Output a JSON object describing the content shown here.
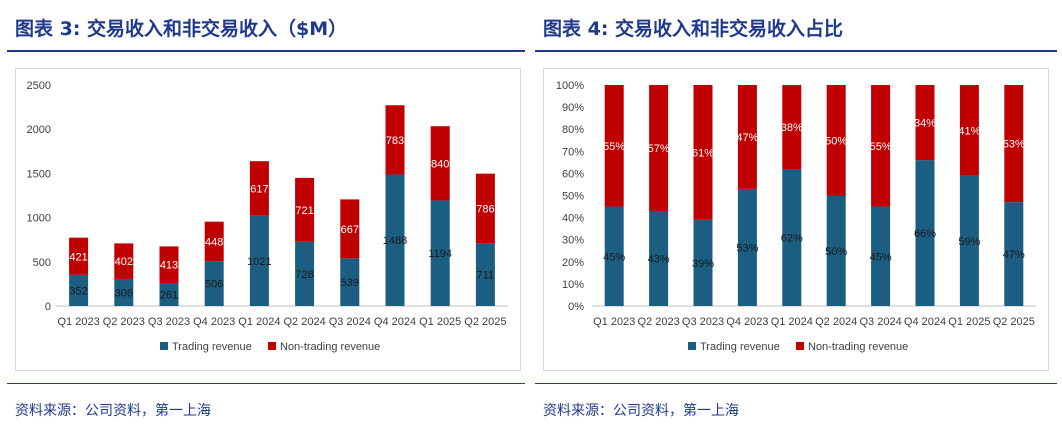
{
  "left": {
    "title": "图表 3: 交易收入和非交易收入（$M）",
    "source": "资料来源：公司资料，第一上海"
  },
  "right": {
    "title": "图表 4: 交易收入和非交易收入占比",
    "source": "资料来源：公司资料，第一上海"
  },
  "colors": {
    "trading": "#1b5e82",
    "non_trading": "#c00000",
    "accent": "#1f3a8c"
  },
  "chart_data": [
    {
      "type": "bar",
      "stacked": true,
      "title": "",
      "xlabel": "",
      "ylabel": "",
      "ylim": [
        0,
        2500
      ],
      "yticks": [
        "0",
        "500",
        "1000",
        "1500",
        "2000",
        "2500"
      ],
      "categories": [
        "Q1 2023",
        "Q2 2023",
        "Q3 2023",
        "Q4 2023",
        "Q1 2024",
        "Q2 2024",
        "Q3 2024",
        "Q4 2024",
        "Q1 2025",
        "Q2 2025"
      ],
      "series": [
        {
          "name": "Trading revenue",
          "values": [
            352,
            306,
            261,
            506,
            1021,
            728,
            539,
            1488,
            1194,
            711
          ]
        },
        {
          "name": "Non-trading revenue",
          "values": [
            421,
            402,
            413,
            448,
            617,
            721,
            667,
            783,
            840,
            786
          ]
        }
      ],
      "legend": "bottom",
      "grid": false
    },
    {
      "type": "bar",
      "stacked": true,
      "percent": true,
      "title": "",
      "xlabel": "",
      "ylabel": "",
      "ylim": [
        0,
        100
      ],
      "yticks": [
        "0%",
        "10%",
        "20%",
        "30%",
        "40%",
        "50%",
        "60%",
        "70%",
        "80%",
        "90%",
        "100%"
      ],
      "categories": [
        "Q1 2023",
        "Q2 2023",
        "Q3 2023",
        "Q4 2023",
        "Q1 2024",
        "Q2 2024",
        "Q3 2024",
        "Q4 2024",
        "Q1 2025",
        "Q2 2025"
      ],
      "series": [
        {
          "name": "Trading revenue",
          "values": [
            45,
            43,
            39,
            53,
            62,
            50,
            45,
            66,
            59,
            47
          ],
          "labels": [
            "45%",
            "43%",
            "39%",
            "53%",
            "62%",
            "50%",
            "45%",
            "66%",
            "59%",
            "47%"
          ]
        },
        {
          "name": "Non-trading revenue",
          "values": [
            55,
            57,
            61,
            47,
            38,
            50,
            55,
            34,
            41,
            53
          ],
          "labels": [
            "55%",
            "57%",
            "61%",
            "47%",
            "38%",
            "50%",
            "55%",
            "34%",
            "41%",
            "53%"
          ]
        }
      ],
      "legend": "bottom",
      "grid": false
    }
  ]
}
